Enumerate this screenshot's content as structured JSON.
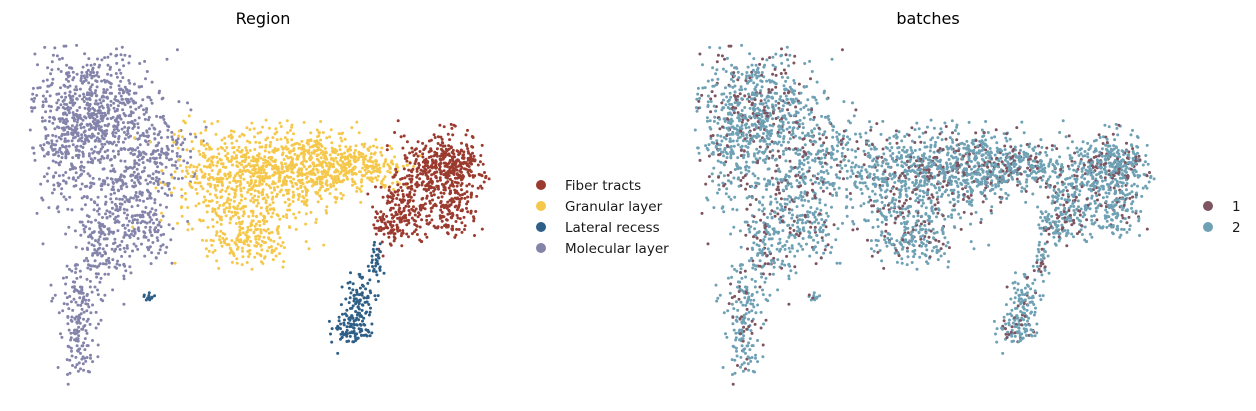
{
  "chart_data": [
    {
      "type": "scatter",
      "title": "Region",
      "xlabel": "",
      "ylabel": "",
      "grid": false,
      "axes_visible": false,
      "legend_placement": "right",
      "series": [
        {
          "name": "Fiber tracts",
          "color": "#9b3a2e"
        },
        {
          "name": "Granular layer",
          "color": "#f5c84c"
        },
        {
          "name": "Lateral recess",
          "color": "#2e5f87"
        },
        {
          "name": "Molecular layer",
          "color": "#8484ab"
        }
      ]
    },
    {
      "type": "scatter",
      "title": "batches",
      "xlabel": "",
      "ylabel": "",
      "grid": false,
      "axes_visible": false,
      "legend_placement": "right",
      "series": [
        {
          "name": "1",
          "color": "#7d5460"
        },
        {
          "name": "2",
          "color": "#6fa1b5"
        }
      ]
    }
  ]
}
